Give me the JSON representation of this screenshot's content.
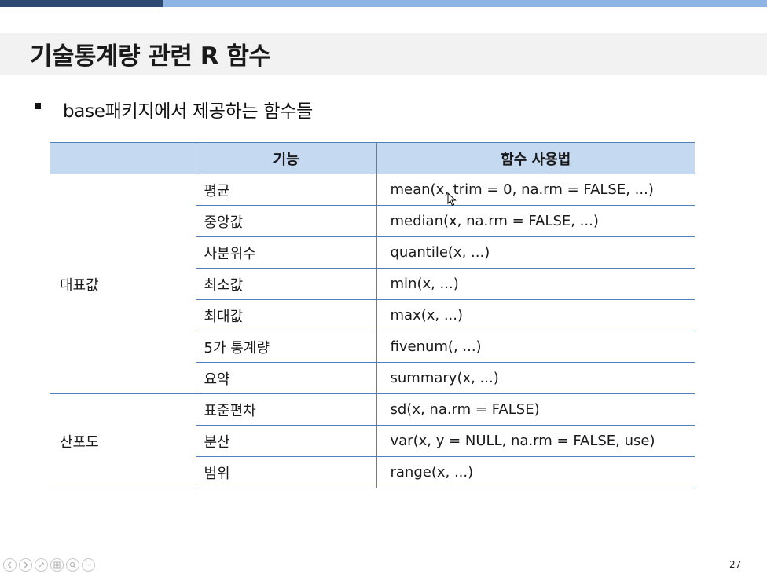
{
  "slide": {
    "title": "기술통계량 관련 R 함수",
    "bullet": "base패키지에서 제공하는 함수들",
    "page_number": "27"
  },
  "table": {
    "headers": [
      "",
      "기능",
      "함수 사용법"
    ],
    "groups": [
      {
        "label": "대표값",
        "rows": [
          {
            "feature": "평균",
            "usage": "mean(x, trim = 0, na.rm = FALSE, ...)"
          },
          {
            "feature": "중앙값",
            "usage": "median(x, na.rm = FALSE, ...)"
          },
          {
            "feature": "사분위수",
            "usage": "quantile(x, ...)"
          },
          {
            "feature": "최소값",
            "usage": "min(x, ...)"
          },
          {
            "feature": "최대값",
            "usage": "max(x, ...)"
          },
          {
            "feature": "5가 통계량",
            "usage": "fivenum(, ...)"
          },
          {
            "feature": "요약",
            "usage": "summary(x, ...)"
          }
        ]
      },
      {
        "label": "산포도",
        "rows": [
          {
            "feature": "표준편차",
            "usage": "sd(x, na.rm = FALSE)"
          },
          {
            "feature": "분산",
            "usage": "var(x, y = NULL, na.rm = FALSE, use)"
          },
          {
            "feature": "범위",
            "usage": "range(x, ...)"
          }
        ]
      }
    ]
  },
  "colors": {
    "header_fill": "#c5d9f1",
    "border": "#4f81bd",
    "top_bar_dark": "#2f4a72",
    "top_bar_light": "#8eb4e3",
    "title_band": "#f2f2f2"
  },
  "controls": {
    "icons": [
      "previous-icon",
      "next-icon",
      "pen-icon",
      "slides-icon",
      "zoom-icon",
      "more-icon"
    ]
  }
}
